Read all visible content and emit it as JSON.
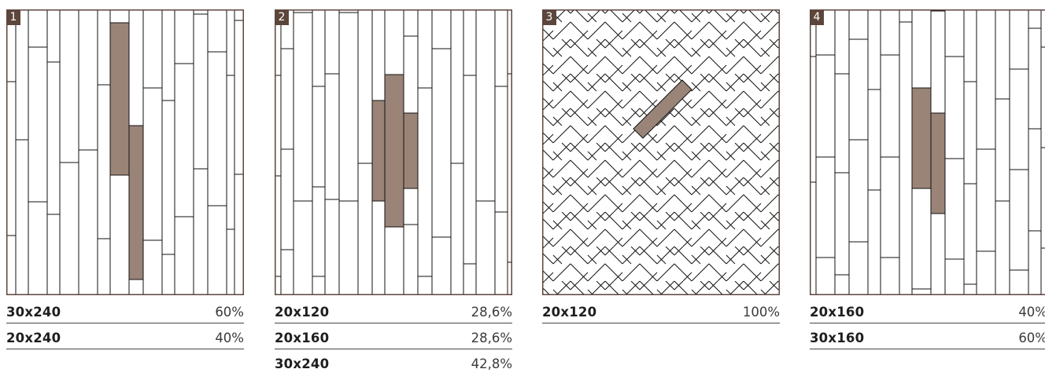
{
  "colors": {
    "frame": "#5c463c",
    "tile_fill": "#ffffff",
    "highlight": "#9a8477",
    "line": "#111111"
  },
  "panels": [
    {
      "number": "1",
      "pattern": "random-straight",
      "specs": [
        {
          "size": "30x240",
          "share": "60%"
        },
        {
          "size": "20x240",
          "share": "40%"
        }
      ]
    },
    {
      "number": "2",
      "pattern": "mixed-straight",
      "specs": [
        {
          "size": "20x120",
          "share": "28,6%"
        },
        {
          "size": "20x160",
          "share": "28,6%"
        },
        {
          "size": "30x240",
          "share": "42,8%"
        }
      ]
    },
    {
      "number": "3",
      "pattern": "herringbone",
      "specs": [
        {
          "size": "20x120",
          "share": "100%"
        }
      ]
    },
    {
      "number": "4",
      "pattern": "random-straight",
      "specs": [
        {
          "size": "20x160",
          "share": "40%"
        },
        {
          "size": "30x160",
          "share": "60%"
        }
      ]
    }
  ]
}
